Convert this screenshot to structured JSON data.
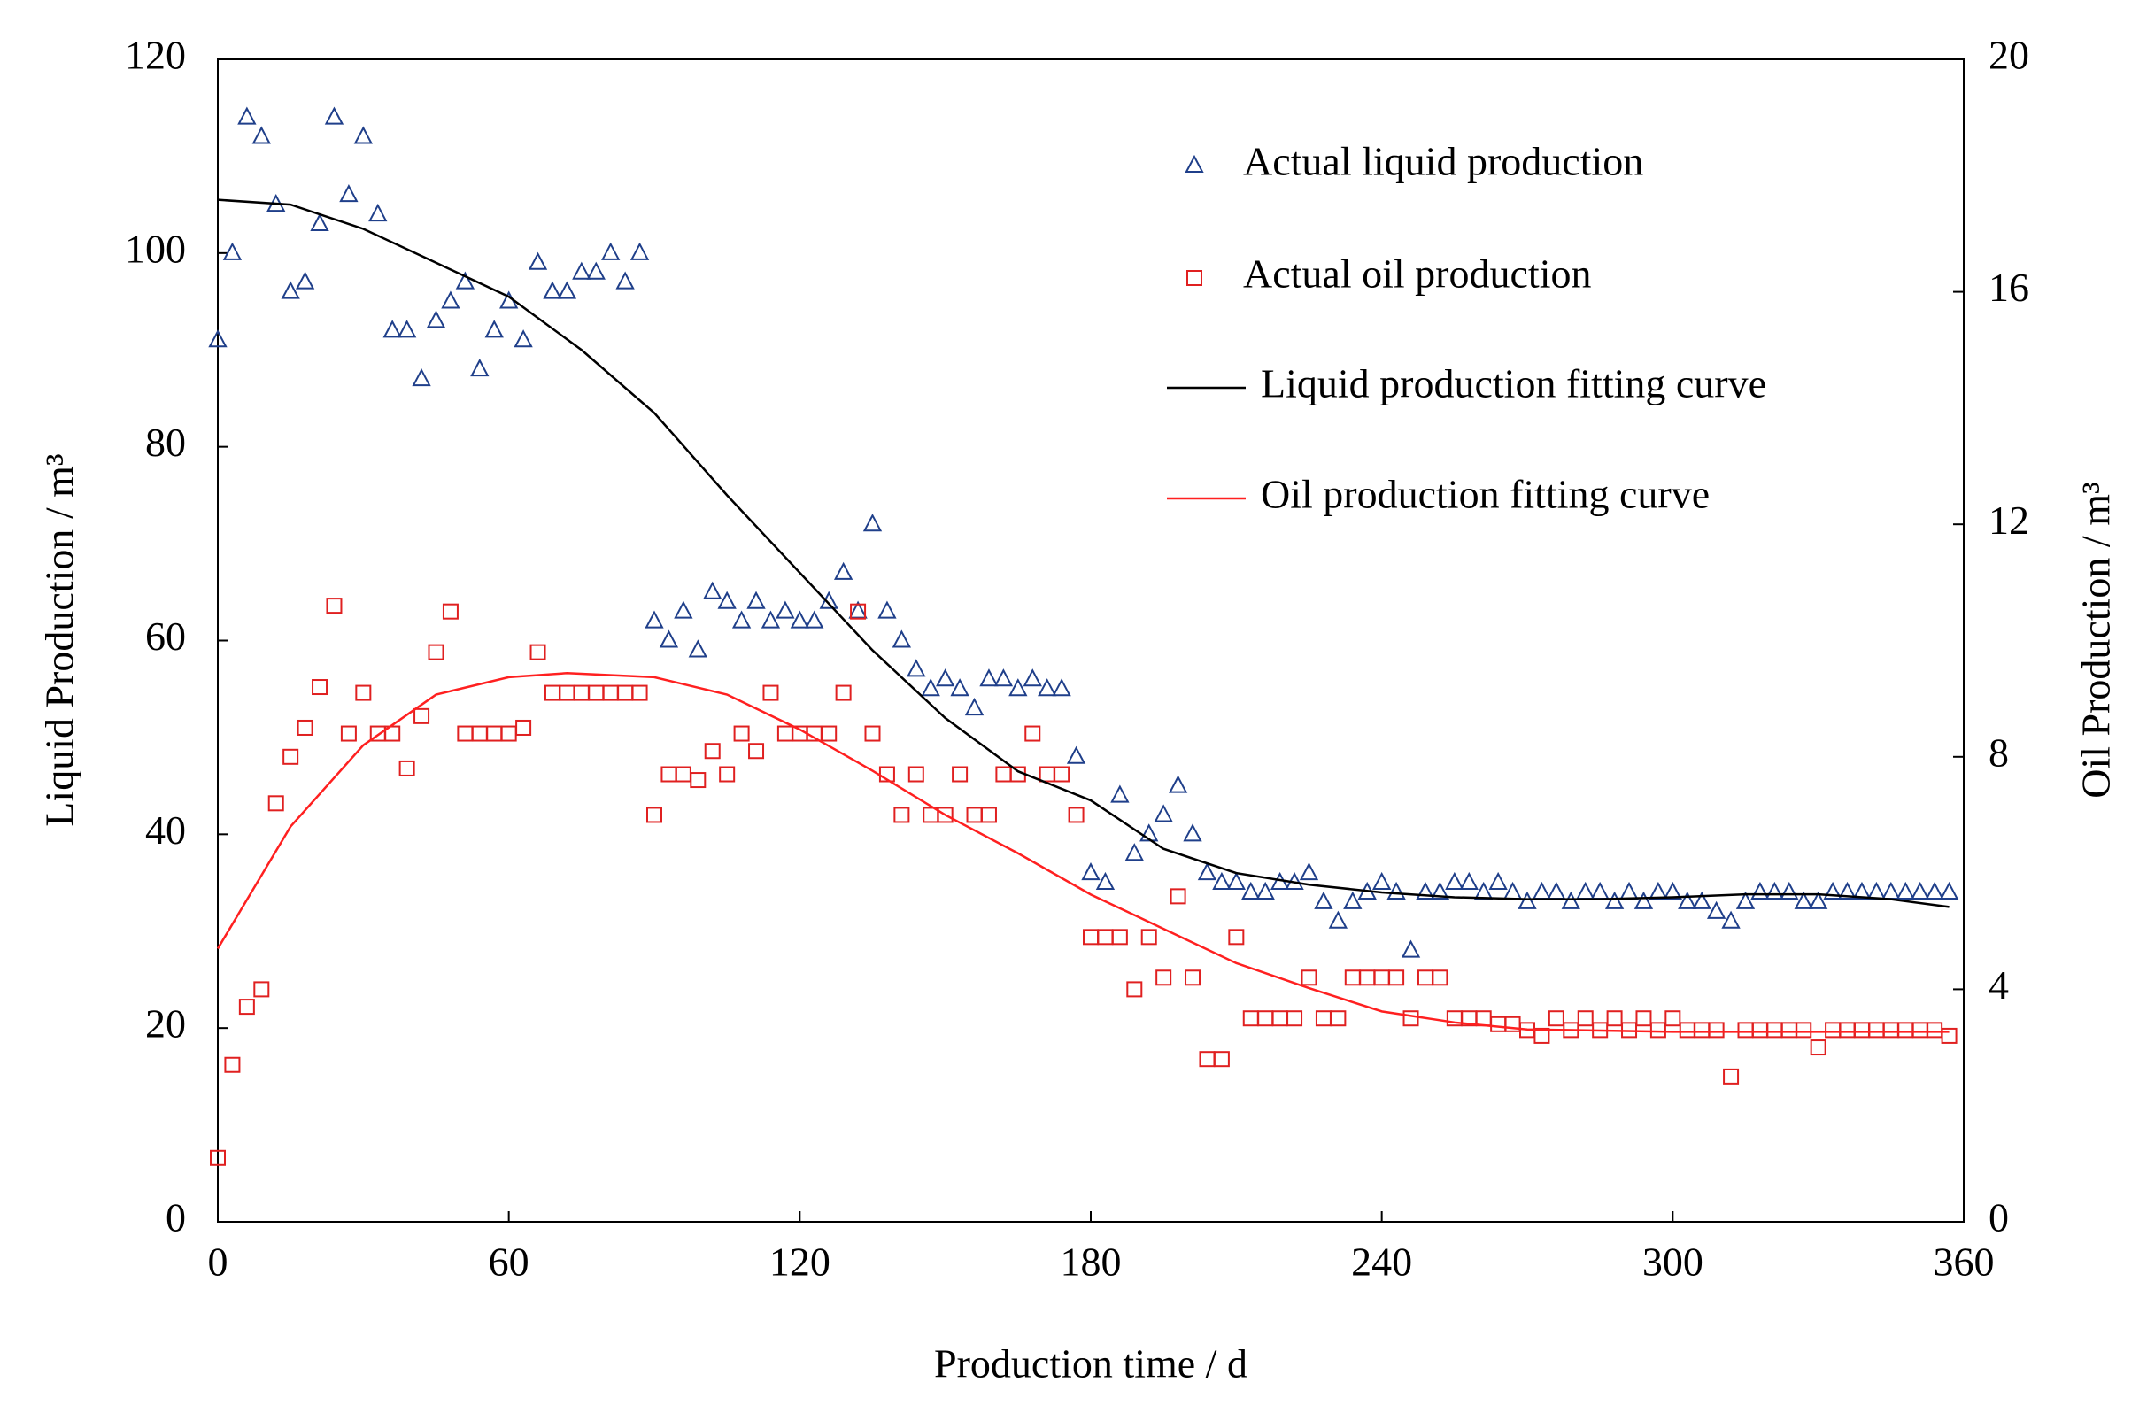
{
  "chart_data": {
    "type": "scatter",
    "xlabel": "Production time / d",
    "ylabel": "Liquid Production / m³",
    "y2label": "Oil Production / m³",
    "xlim": [
      0,
      360
    ],
    "xticks": [
      0,
      60,
      120,
      180,
      240,
      300,
      360
    ],
    "ylim": [
      0,
      120
    ],
    "yticks": [
      0,
      20,
      40,
      60,
      80,
      100,
      120
    ],
    "y2lim": [
      0,
      20
    ],
    "y2ticks": [
      0,
      4,
      8,
      12,
      16,
      20
    ],
    "legend": "upper right",
    "series": [
      {
        "name": "Actual liquid production",
        "type": "scatter",
        "marker": "triangle",
        "color": "#1f3f8a",
        "x": [
          0,
          3,
          6,
          9,
          12,
          15,
          18,
          21,
          24,
          27,
          30,
          33,
          36,
          39,
          42,
          45,
          48,
          51,
          54,
          57,
          60,
          63,
          66,
          69,
          72,
          75,
          78,
          81,
          84,
          87,
          90,
          93,
          96,
          99,
          102,
          105,
          108,
          111,
          114,
          117,
          120,
          123,
          126,
          129,
          132,
          135,
          138,
          141,
          144,
          147,
          150,
          153,
          156,
          159,
          162,
          165,
          168,
          171,
          174,
          177,
          180,
          183,
          186,
          189,
          192,
          195,
          198,
          201,
          204,
          207,
          210,
          213,
          216,
          219,
          222,
          225,
          228,
          231,
          234,
          237,
          240,
          243,
          246,
          249,
          252,
          255,
          258,
          261,
          264,
          267,
          270,
          273,
          276,
          279,
          282,
          285,
          288,
          291,
          294,
          297,
          300,
          303,
          306,
          309,
          312,
          315,
          318,
          321,
          324,
          327,
          330,
          333,
          336,
          339,
          342,
          345,
          348,
          351,
          354,
          357
        ],
        "values": [
          91,
          100,
          114,
          112,
          105,
          96,
          97,
          103,
          114,
          106,
          112,
          104,
          92,
          92,
          87,
          93,
          95,
          97,
          88,
          92,
          95,
          91,
          99,
          96,
          96,
          98,
          98,
          100,
          97,
          100,
          62,
          60,
          63,
          59,
          65,
          64,
          62,
          64,
          62,
          63,
          62,
          62,
          64,
          67,
          63,
          72,
          63,
          60,
          57,
          55,
          56,
          55,
          53,
          56,
          56,
          55,
          56,
          55,
          55,
          48,
          36,
          35,
          44,
          38,
          40,
          42,
          45,
          40,
          36,
          35,
          35,
          34,
          34,
          35,
          35,
          36,
          33,
          31,
          33,
          34,
          35,
          34,
          28,
          34,
          34,
          35,
          35,
          34,
          35,
          34,
          33,
          34,
          34,
          33,
          34,
          34,
          33,
          34,
          33,
          34,
          34,
          33,
          33,
          32,
          31,
          33,
          34,
          34,
          34,
          33,
          33,
          34,
          34,
          34,
          34,
          34,
          34,
          34,
          34,
          34
        ]
      },
      {
        "name": "Actual oil production",
        "type": "scatter",
        "marker": "square",
        "color": "#e02020",
        "axis": "y2",
        "x": [
          0,
          3,
          6,
          9,
          12,
          15,
          18,
          21,
          24,
          27,
          30,
          33,
          36,
          39,
          42,
          45,
          48,
          51,
          54,
          57,
          60,
          63,
          66,
          69,
          72,
          75,
          78,
          81,
          84,
          87,
          90,
          93,
          96,
          99,
          102,
          105,
          108,
          111,
          114,
          117,
          120,
          123,
          126,
          129,
          132,
          135,
          138,
          141,
          144,
          147,
          150,
          153,
          156,
          159,
          162,
          165,
          168,
          171,
          174,
          177,
          180,
          183,
          186,
          189,
          192,
          195,
          198,
          201,
          204,
          207,
          210,
          213,
          216,
          219,
          222,
          225,
          228,
          231,
          234,
          237,
          240,
          243,
          246,
          249,
          252,
          255,
          258,
          261,
          264,
          267,
          270,
          273,
          276,
          279,
          282,
          285,
          288,
          291,
          294,
          297,
          300,
          303,
          306,
          309,
          312,
          315,
          318,
          321,
          324,
          327,
          330,
          333,
          336,
          339,
          342,
          345,
          348,
          351,
          354,
          357
        ],
        "values": [
          1.1,
          2.7,
          3.7,
          4.0,
          7.2,
          8.0,
          8.5,
          9.2,
          10.6,
          8.4,
          9.1,
          8.4,
          8.4,
          7.8,
          8.7,
          9.8,
          10.5,
          8.4,
          8.4,
          8.4,
          8.4,
          8.5,
          9.8,
          9.1,
          9.1,
          9.1,
          9.1,
          9.1,
          9.1,
          9.1,
          7.0,
          7.7,
          7.7,
          7.6,
          8.1,
          7.7,
          8.4,
          8.1,
          9.1,
          8.4,
          8.4,
          8.4,
          8.4,
          9.1,
          10.5,
          8.4,
          7.7,
          7.0,
          7.7,
          7.0,
          7.0,
          7.7,
          7.0,
          7.0,
          7.7,
          7.7,
          8.4,
          7.7,
          7.7,
          7.0,
          4.9,
          4.9,
          4.9,
          4.0,
          4.9,
          4.2,
          5.6,
          4.2,
          2.8,
          2.8,
          4.9,
          3.5,
          3.5,
          3.5,
          3.5,
          4.2,
          3.5,
          3.5,
          4.2,
          4.2,
          4.2,
          4.2,
          3.5,
          4.2,
          4.2,
          3.5,
          3.5,
          3.5,
          3.4,
          3.4,
          3.3,
          3.2,
          3.5,
          3.3,
          3.5,
          3.3,
          3.5,
          3.3,
          3.5,
          3.3,
          3.5,
          3.3,
          3.3,
          3.3,
          2.5,
          3.3,
          3.3,
          3.3,
          3.3,
          3.3,
          3.0,
          3.3,
          3.3,
          3.3,
          3.3,
          3.3,
          3.3,
          3.3,
          3.3,
          3.2
        ]
      },
      {
        "name": "Liquid production fitting curve",
        "type": "line",
        "color": "#000000",
        "x": [
          0,
          15,
          30,
          45,
          60,
          75,
          90,
          105,
          120,
          135,
          150,
          165,
          180,
          195,
          210,
          225,
          240,
          255,
          270,
          285,
          300,
          315,
          330,
          345,
          357
        ],
        "values": [
          105.5,
          105,
          102.5,
          99,
          95.5,
          90,
          83.5,
          75,
          67,
          59,
          52,
          46.5,
          43.5,
          38.5,
          36,
          34.8,
          34,
          33.5,
          33.3,
          33.3,
          33.5,
          33.8,
          33.8,
          33.3,
          32.5
        ]
      },
      {
        "name": "Oil production fitting curve",
        "type": "line",
        "color": "#ff2020",
        "axis": "y2",
        "x": [
          0,
          15,
          30,
          45,
          60,
          72,
          90,
          105,
          120,
          135,
          150,
          165,
          180,
          195,
          210,
          225,
          240,
          255,
          270,
          300,
          330,
          357
        ],
        "values": [
          4.7,
          6.8,
          8.2,
          9.07,
          9.37,
          9.44,
          9.37,
          9.07,
          8.47,
          7.76,
          7.0,
          6.34,
          5.63,
          5.04,
          4.45,
          4.02,
          3.62,
          3.43,
          3.31,
          3.27,
          3.27,
          3.27
        ]
      }
    ]
  }
}
